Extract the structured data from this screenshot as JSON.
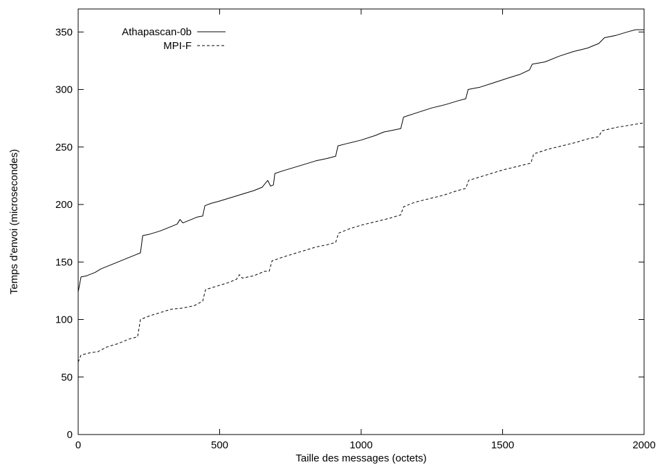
{
  "chart_data": {
    "type": "line",
    "title": "",
    "xlabel": "Taille des messages (octets)",
    "ylabel": "Temps d'envoi (microsecondes)",
    "xlim": [
      0,
      2000
    ],
    "ylim": [
      0,
      370
    ],
    "x_ticks": [
      0,
      500,
      1000,
      1500,
      2000
    ],
    "x_tick_labels": [
      "0",
      "500",
      "1000",
      "1500",
      "2000"
    ],
    "y_ticks": [
      0,
      50,
      100,
      150,
      200,
      250,
      300,
      350
    ],
    "y_tick_labels": [
      "0",
      "50",
      "100",
      "150",
      "200",
      "250",
      "300",
      "350"
    ],
    "grid": false,
    "legend_position": "top-left",
    "series": [
      {
        "name": "Athapascan-0b",
        "style": "solid",
        "color": "#000000",
        "points": [
          [
            0,
            124
          ],
          [
            10,
            137
          ],
          [
            30,
            138
          ],
          [
            60,
            141
          ],
          [
            80,
            144
          ],
          [
            110,
            147
          ],
          [
            140,
            150
          ],
          [
            170,
            153
          ],
          [
            200,
            156
          ],
          [
            220,
            158
          ],
          [
            228,
            173
          ],
          [
            250,
            174
          ],
          [
            290,
            177
          ],
          [
            330,
            181
          ],
          [
            350,
            183
          ],
          [
            360,
            187
          ],
          [
            370,
            184
          ],
          [
            400,
            187
          ],
          [
            420,
            189
          ],
          [
            440,
            190
          ],
          [
            448,
            199
          ],
          [
            470,
            201
          ],
          [
            500,
            203
          ],
          [
            540,
            206
          ],
          [
            580,
            209
          ],
          [
            620,
            212
          ],
          [
            650,
            215
          ],
          [
            670,
            221
          ],
          [
            680,
            216
          ],
          [
            690,
            217
          ],
          [
            695,
            227
          ],
          [
            720,
            229
          ],
          [
            760,
            232
          ],
          [
            800,
            235
          ],
          [
            840,
            238
          ],
          [
            880,
            240
          ],
          [
            910,
            242
          ],
          [
            918,
            251
          ],
          [
            950,
            253
          ],
          [
            1000,
            256
          ],
          [
            1050,
            260
          ],
          [
            1080,
            263
          ],
          [
            1100,
            264
          ],
          [
            1140,
            266
          ],
          [
            1150,
            276
          ],
          [
            1200,
            280
          ],
          [
            1250,
            284
          ],
          [
            1300,
            287
          ],
          [
            1340,
            290
          ],
          [
            1370,
            292
          ],
          [
            1378,
            300
          ],
          [
            1420,
            302
          ],
          [
            1470,
            306
          ],
          [
            1520,
            310
          ],
          [
            1560,
            313
          ],
          [
            1595,
            317
          ],
          [
            1605,
            322
          ],
          [
            1650,
            324
          ],
          [
            1700,
            329
          ],
          [
            1750,
            333
          ],
          [
            1800,
            336
          ],
          [
            1840,
            340
          ],
          [
            1860,
            345
          ],
          [
            1900,
            347
          ],
          [
            1940,
            350
          ],
          [
            1970,
            352
          ],
          [
            2000,
            352
          ]
        ]
      },
      {
        "name": "MPI-F",
        "style": "dashed",
        "color": "#000000",
        "points": [
          [
            0,
            63
          ],
          [
            10,
            69
          ],
          [
            40,
            71
          ],
          [
            70,
            72
          ],
          [
            100,
            76
          ],
          [
            140,
            79
          ],
          [
            180,
            83
          ],
          [
            210,
            85
          ],
          [
            220,
            100
          ],
          [
            250,
            103
          ],
          [
            290,
            106
          ],
          [
            330,
            109
          ],
          [
            370,
            110
          ],
          [
            410,
            112
          ],
          [
            440,
            116
          ],
          [
            450,
            126
          ],
          [
            490,
            129
          ],
          [
            530,
            132
          ],
          [
            560,
            135
          ],
          [
            570,
            139
          ],
          [
            580,
            136
          ],
          [
            620,
            138
          ],
          [
            660,
            142
          ],
          [
            675,
            142
          ],
          [
            685,
            151
          ],
          [
            720,
            154
          ],
          [
            760,
            157
          ],
          [
            800,
            160
          ],
          [
            840,
            163
          ],
          [
            880,
            165
          ],
          [
            910,
            167
          ],
          [
            920,
            175
          ],
          [
            960,
            179
          ],
          [
            1000,
            182
          ],
          [
            1050,
            185
          ],
          [
            1100,
            188
          ],
          [
            1140,
            191
          ],
          [
            1150,
            198
          ],
          [
            1190,
            202
          ],
          [
            1240,
            205
          ],
          [
            1290,
            208
          ],
          [
            1340,
            212
          ],
          [
            1370,
            214
          ],
          [
            1380,
            221
          ],
          [
            1420,
            224
          ],
          [
            1460,
            227
          ],
          [
            1500,
            230
          ],
          [
            1550,
            233
          ],
          [
            1600,
            236
          ],
          [
            1610,
            244
          ],
          [
            1660,
            248
          ],
          [
            1710,
            251
          ],
          [
            1760,
            254
          ],
          [
            1800,
            257
          ],
          [
            1840,
            259
          ],
          [
            1850,
            264
          ],
          [
            1900,
            267
          ],
          [
            1950,
            269
          ],
          [
            2000,
            271
          ]
        ]
      }
    ]
  }
}
